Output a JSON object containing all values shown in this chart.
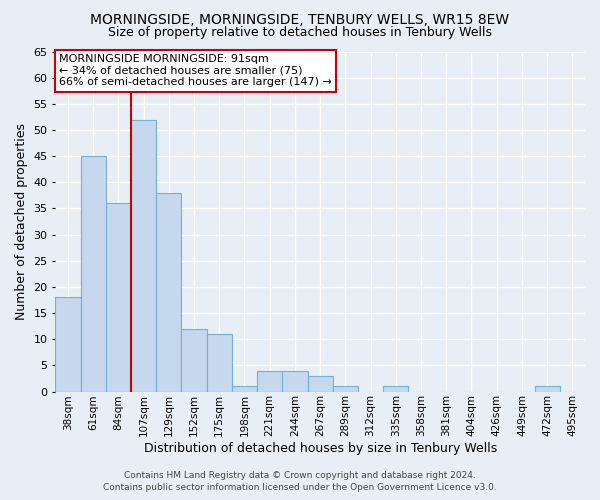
{
  "title": "MORNINGSIDE, MORNINGSIDE, TENBURY WELLS, WR15 8EW",
  "subtitle": "Size of property relative to detached houses in Tenbury Wells",
  "xlabel": "Distribution of detached houses by size in Tenbury Wells",
  "ylabel": "Number of detached properties",
  "categories": [
    "38sqm",
    "61sqm",
    "84sqm",
    "107sqm",
    "129sqm",
    "152sqm",
    "175sqm",
    "198sqm",
    "221sqm",
    "244sqm",
    "267sqm",
    "289sqm",
    "312sqm",
    "335sqm",
    "358sqm",
    "381sqm",
    "404sqm",
    "426sqm",
    "449sqm",
    "472sqm",
    "495sqm"
  ],
  "values": [
    18,
    45,
    36,
    52,
    38,
    12,
    11,
    1,
    4,
    4,
    3,
    1,
    0,
    1,
    0,
    0,
    0,
    0,
    0,
    1,
    0
  ],
  "bar_color": "#c5d8ee",
  "bar_edge_color": "#7aadd4",
  "vline_x": 2.5,
  "vline_color": "#cc0000",
  "annotation_text": "MORNINGSIDE MORNINGSIDE: 91sqm\n← 34% of detached houses are smaller (75)\n66% of semi-detached houses are larger (147) →",
  "annotation_box_color": "#ffffff",
  "annotation_box_edge": "#cc0000",
  "footer_line1": "Contains HM Land Registry data © Crown copyright and database right 2024.",
  "footer_line2": "Contains public sector information licensed under the Open Government Licence v3.0.",
  "ylim": [
    0,
    65
  ],
  "yticks": [
    0,
    5,
    10,
    15,
    20,
    25,
    30,
    35,
    40,
    45,
    50,
    55,
    60,
    65
  ],
  "background_color": "#e8eef5",
  "grid_color": "#ffffff",
  "title_fontsize": 10,
  "subtitle_fontsize": 9,
  "ylabel_fontsize": 9,
  "xlabel_fontsize": 9
}
